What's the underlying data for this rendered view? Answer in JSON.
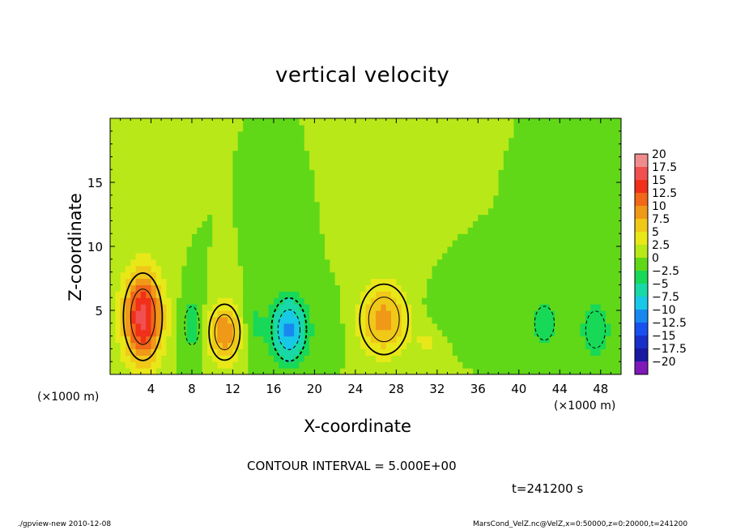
{
  "chart_data": {
    "type": "heatmap",
    "title": "vertical velocity",
    "xlabel": "X-coordinate",
    "ylabel": "Z-coordinate",
    "x_unit": "(×1000 m)",
    "xlim": [
      0,
      50
    ],
    "ylim": [
      0,
      20
    ],
    "x_ticks": [
      4,
      8,
      12,
      16,
      20,
      24,
      28,
      32,
      36,
      40,
      44,
      48
    ],
    "x_tick_labels": [
      "4",
      "8",
      "12",
      "16",
      "20",
      "24",
      "28",
      "32",
      "36",
      "40",
      "44",
      "48"
    ],
    "y_ticks": [
      5,
      10,
      15
    ],
    "y_tick_labels": [
      "5",
      "10",
      "15"
    ],
    "colorbar": {
      "levels": [
        20,
        17.5,
        15,
        12.5,
        10,
        7.5,
        5,
        2.5,
        0,
        -2.5,
        -5,
        -7.5,
        -10,
        -12.5,
        -15,
        -17.5,
        -20
      ],
      "labels": [
        "20",
        "17.5",
        "15",
        "12.5",
        "10",
        "7.5",
        "5",
        "2.5",
        "0",
        "−2.5",
        "−5",
        "−7.5",
        "−10",
        "−12.5",
        "−15",
        "−17.5",
        "−20"
      ],
      "colors": [
        "#f08c8c",
        "#f05050",
        "#f03018",
        "#f06818",
        "#f09818",
        "#f0c818",
        "#e8e818",
        "#b8e818",
        "#60d818",
        "#18d858",
        "#18d8a8",
        "#18c8e8",
        "#1888f0",
        "#1850f0",
        "#1830c8",
        "#1818a0",
        "#8018b8"
      ]
    },
    "features": [
      {
        "x": 3.2,
        "z": 4.5,
        "w": 16,
        "rx": 2.0,
        "rz": 3.6
      },
      {
        "x": 11.2,
        "z": 3.3,
        "w": 10,
        "rx": 1.6,
        "rz": 2.3
      },
      {
        "x": 17.5,
        "z": 3.5,
        "w": -11,
        "rx": 1.8,
        "rz": 2.6
      },
      {
        "x": 26.8,
        "z": 4.3,
        "w": 8.5,
        "rx": 2.5,
        "rz": 2.9
      },
      {
        "x": 8.0,
        "z": 3.8,
        "w": -4,
        "rx": 1.2,
        "rz": 2.5
      },
      {
        "x": 14.0,
        "z": 4.0,
        "w": -3,
        "rx": 1.0,
        "rz": 2.5
      },
      {
        "x": 21.5,
        "z": 3.5,
        "w": -2,
        "rx": 1.2,
        "rz": 2.2
      },
      {
        "x": 42.5,
        "z": 4.0,
        "w": -4,
        "rx": 1.6,
        "rz": 2.2
      },
      {
        "x": 47.5,
        "z": 3.5,
        "w": -5,
        "rx": 1.6,
        "rz": 2.4
      },
      {
        "x": 35.0,
        "z": 5.5,
        "w": -2.5,
        "rx": 3.5,
        "rz": 1.5
      },
      {
        "x": 31.0,
        "z": 2.5,
        "w": 3,
        "rx": 1.0,
        "rz": 1.2
      }
    ],
    "contour_interval": "CONTOUR INTERVAL = 5.000E+00",
    "time": "t=241200 s"
  },
  "footer": {
    "left": "./gpview-new  2010-12-08",
    "right": "MarsCond_VelZ.nc@VelZ,x=0:50000,z=0:20000,t=241200"
  }
}
